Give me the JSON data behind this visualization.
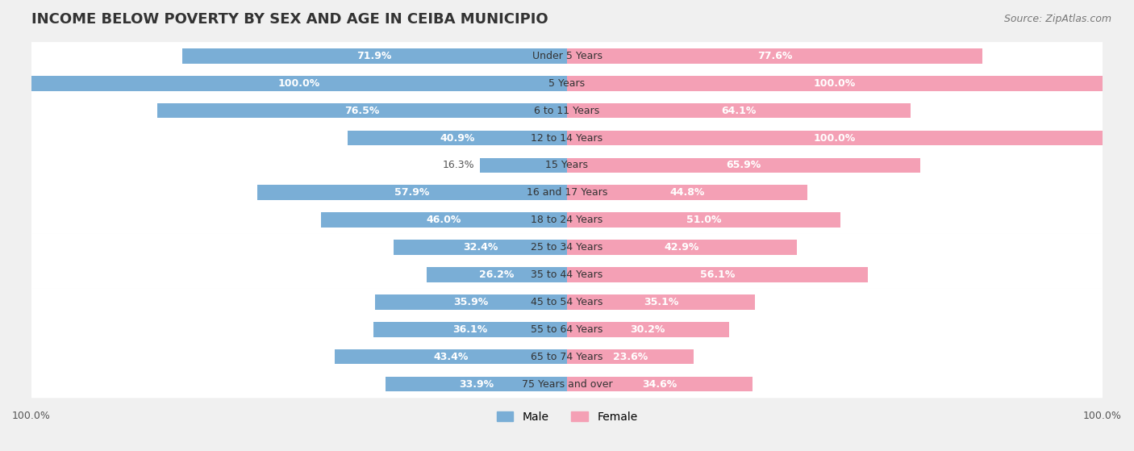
{
  "title": "INCOME BELOW POVERTY BY SEX AND AGE IN CEIBA MUNICIPIO",
  "source": "Source: ZipAtlas.com",
  "categories": [
    "Under 5 Years",
    "5 Years",
    "6 to 11 Years",
    "12 to 14 Years",
    "15 Years",
    "16 and 17 Years",
    "18 to 24 Years",
    "25 to 34 Years",
    "35 to 44 Years",
    "45 to 54 Years",
    "55 to 64 Years",
    "65 to 74 Years",
    "75 Years and over"
  ],
  "male_values": [
    71.9,
    100.0,
    76.5,
    40.9,
    16.3,
    57.9,
    46.0,
    32.4,
    26.2,
    35.9,
    36.1,
    43.4,
    33.9
  ],
  "female_values": [
    77.6,
    100.0,
    64.1,
    100.0,
    65.9,
    44.8,
    51.0,
    42.9,
    56.1,
    35.1,
    30.2,
    23.6,
    34.6
  ],
  "male_color": "#7aaed6",
  "female_color": "#f4a0b5",
  "male_label": "Male",
  "female_label": "Female",
  "bg_color": "#f0f0f0",
  "bar_bg_color": "#ffffff",
  "xlim": 100,
  "bar_height": 0.55,
  "title_fontsize": 13,
  "source_fontsize": 9,
  "label_fontsize": 9,
  "category_fontsize": 9,
  "legend_fontsize": 10
}
